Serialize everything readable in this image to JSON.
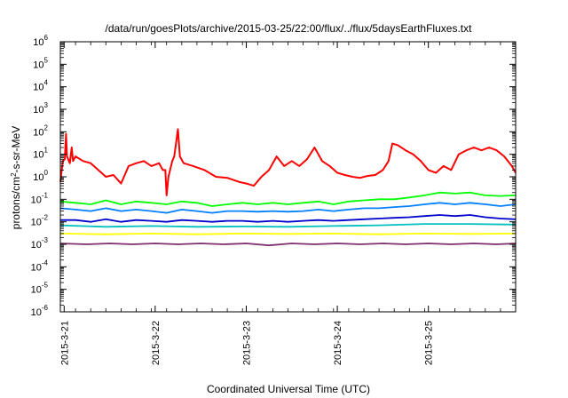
{
  "chart_data": {
    "type": "line",
    "title": "/data/run/goesPlots/archive/2015-03-25/22:00/flux/../flux/5daysEarthFluxes.txt",
    "xlabel": "Coordinated Universal Time (UTC)",
    "ylabel": {
      "base": "protons/cm",
      "sup": "2",
      "rest": "-s-sr-MeV"
    },
    "yscale": "log",
    "ylim": [
      1e-06,
      1000000.0
    ],
    "y_ticks": [
      {
        "value": 1e-06,
        "base": "10",
        "exp": "-6"
      },
      {
        "value": 1e-05,
        "base": "10",
        "exp": "-5"
      },
      {
        "value": 0.0001,
        "base": "10",
        "exp": "-4"
      },
      {
        "value": 0.001,
        "base": "10",
        "exp": "-3"
      },
      {
        "value": 0.01,
        "base": "10",
        "exp": "-2"
      },
      {
        "value": 0.1,
        "base": "10",
        "exp": "-1"
      },
      {
        "value": 1,
        "base": "10",
        "exp": "0"
      },
      {
        "value": 10,
        "base": "10",
        "exp": "1"
      },
      {
        "value": 100,
        "base": "10",
        "exp": "2"
      },
      {
        "value": 1000,
        "base": "10",
        "exp": "3"
      },
      {
        "value": 10000,
        "base": "10",
        "exp": "4"
      },
      {
        "value": 100000,
        "base": "10",
        "exp": "5"
      },
      {
        "value": 1000000,
        "base": "10",
        "exp": "6"
      }
    ],
    "xlim": [
      "2015-03-20T23:00",
      "2015-03-25T23:00"
    ],
    "x_ticks": [
      {
        "value": "2015-03-21T00:00",
        "label": "2015-3-21"
      },
      {
        "value": "2015-03-22T00:00",
        "label": "2015-3-22"
      },
      {
        "value": "2015-03-23T00:00",
        "label": "2015-3-23"
      },
      {
        "value": "2015-03-24T00:00",
        "label": "2015-3-24"
      },
      {
        "value": "2015-03-25T00:00",
        "label": "2015-3-25"
      }
    ],
    "grid": false,
    "legend": "none",
    "series": [
      {
        "color": "#ff0000",
        "points": [
          [
            "2015-03-20T23:00",
            0.6
          ],
          [
            "2015-03-20T23:40",
            5
          ],
          [
            "2015-03-21T00:10",
            6
          ],
          [
            "2015-03-21T00:30",
            80
          ],
          [
            "2015-03-21T00:45",
            8
          ],
          [
            "2015-03-21T01:30",
            4
          ],
          [
            "2015-03-21T02:00",
            20
          ],
          [
            "2015-03-21T02:20",
            5
          ],
          [
            "2015-03-21T03:00",
            8
          ],
          [
            "2015-03-21T05:00",
            5
          ],
          [
            "2015-03-21T07:00",
            4
          ],
          [
            "2015-03-21T09:00",
            2
          ],
          [
            "2015-03-21T11:00",
            1
          ],
          [
            "2015-03-21T13:00",
            1.2
          ],
          [
            "2015-03-21T15:00",
            0.5
          ],
          [
            "2015-03-21T17:00",
            3
          ],
          [
            "2015-03-21T19:00",
            4
          ],
          [
            "2015-03-21T21:00",
            5
          ],
          [
            "2015-03-21T23:00",
            3
          ],
          [
            "2015-03-22T01:00",
            4
          ],
          [
            "2015-03-22T02:00",
            2
          ],
          [
            "2015-03-22T02:40",
            2
          ],
          [
            "2015-03-22T03:00",
            0.15
          ],
          [
            "2015-03-22T03:30",
            1
          ],
          [
            "2015-03-22T04:30",
            5
          ],
          [
            "2015-03-22T05:00",
            8
          ],
          [
            "2015-03-22T06:00",
            130
          ],
          [
            "2015-03-22T06:30",
            8
          ],
          [
            "2015-03-22T07:30",
            4
          ],
          [
            "2015-03-22T10:00",
            3
          ],
          [
            "2015-03-22T13:00",
            2
          ],
          [
            "2015-03-22T16:00",
            1
          ],
          [
            "2015-03-22T19:00",
            0.9
          ],
          [
            "2015-03-22T22:00",
            0.6
          ],
          [
            "2015-03-23T00:00",
            0.5
          ],
          [
            "2015-03-23T02:00",
            0.4
          ],
          [
            "2015-03-23T04:00",
            1
          ],
          [
            "2015-03-23T06:00",
            2
          ],
          [
            "2015-03-23T08:00",
            8
          ],
          [
            "2015-03-23T10:00",
            3
          ],
          [
            "2015-03-23T12:00",
            5
          ],
          [
            "2015-03-23T14:00",
            3
          ],
          [
            "2015-03-23T16:00",
            6
          ],
          [
            "2015-03-23T18:00",
            20
          ],
          [
            "2015-03-23T20:00",
            5
          ],
          [
            "2015-03-23T22:00",
            3
          ],
          [
            "2015-03-24T00:00",
            1.5
          ],
          [
            "2015-03-24T02:00",
            1.2
          ],
          [
            "2015-03-24T04:00",
            1
          ],
          [
            "2015-03-24T06:00",
            0.9
          ],
          [
            "2015-03-24T08:00",
            1.1
          ],
          [
            "2015-03-24T10:00",
            1.2
          ],
          [
            "2015-03-24T12:00",
            2
          ],
          [
            "2015-03-24T13:30",
            5
          ],
          [
            "2015-03-24T14:30",
            30
          ],
          [
            "2015-03-24T16:00",
            25
          ],
          [
            "2015-03-24T18:00",
            15
          ],
          [
            "2015-03-24T20:00",
            10
          ],
          [
            "2015-03-24T22:00",
            5
          ],
          [
            "2015-03-25T00:00",
            2
          ],
          [
            "2015-03-25T02:00",
            1.5
          ],
          [
            "2015-03-25T04:00",
            3
          ],
          [
            "2015-03-25T06:00",
            2
          ],
          [
            "2015-03-25T08:00",
            10
          ],
          [
            "2015-03-25T10:00",
            15
          ],
          [
            "2015-03-25T12:00",
            20
          ],
          [
            "2015-03-25T14:00",
            15
          ],
          [
            "2015-03-25T16:00",
            20
          ],
          [
            "2015-03-25T18:00",
            15
          ],
          [
            "2015-03-25T20:00",
            8
          ],
          [
            "2015-03-25T22:00",
            3
          ],
          [
            "2015-03-25T23:00",
            1.5
          ]
        ]
      },
      {
        "color": "#00ff00",
        "points": [
          [
            "2015-03-20T23:00",
            0.08
          ],
          [
            "2015-03-21T03:00",
            0.07
          ],
          [
            "2015-03-21T07:00",
            0.06
          ],
          [
            "2015-03-21T11:00",
            0.09
          ],
          [
            "2015-03-21T15:00",
            0.06
          ],
          [
            "2015-03-21T19:00",
            0.08
          ],
          [
            "2015-03-21T23:00",
            0.07
          ],
          [
            "2015-03-22T03:00",
            0.06
          ],
          [
            "2015-03-22T07:00",
            0.08
          ],
          [
            "2015-03-22T11:00",
            0.07
          ],
          [
            "2015-03-22T15:00",
            0.05
          ],
          [
            "2015-03-22T19:00",
            0.06
          ],
          [
            "2015-03-22T23:00",
            0.07
          ],
          [
            "2015-03-23T03:00",
            0.06
          ],
          [
            "2015-03-23T07:00",
            0.07
          ],
          [
            "2015-03-23T11:00",
            0.06
          ],
          [
            "2015-03-23T15:00",
            0.07
          ],
          [
            "2015-03-23T19:00",
            0.08
          ],
          [
            "2015-03-23T23:00",
            0.06
          ],
          [
            "2015-03-24T03:00",
            0.08
          ],
          [
            "2015-03-24T07:00",
            0.09
          ],
          [
            "2015-03-24T11:00",
            0.1
          ],
          [
            "2015-03-24T15:00",
            0.1
          ],
          [
            "2015-03-24T19:00",
            0.12
          ],
          [
            "2015-03-24T23:00",
            0.15
          ],
          [
            "2015-03-25T03:00",
            0.2
          ],
          [
            "2015-03-25T07:00",
            0.18
          ],
          [
            "2015-03-25T11:00",
            0.2
          ],
          [
            "2015-03-25T15:00",
            0.15
          ],
          [
            "2015-03-25T19:00",
            0.14
          ],
          [
            "2015-03-25T23:00",
            0.15
          ]
        ]
      },
      {
        "color": "#0080ff",
        "points": [
          [
            "2015-03-20T23:00",
            0.04
          ],
          [
            "2015-03-21T03:00",
            0.035
          ],
          [
            "2015-03-21T07:00",
            0.03
          ],
          [
            "2015-03-21T11:00",
            0.04
          ],
          [
            "2015-03-21T15:00",
            0.03
          ],
          [
            "2015-03-21T19:00",
            0.035
          ],
          [
            "2015-03-21T23:00",
            0.03
          ],
          [
            "2015-03-22T03:00",
            0.025
          ],
          [
            "2015-03-22T07:00",
            0.035
          ],
          [
            "2015-03-22T11:00",
            0.03
          ],
          [
            "2015-03-22T15:00",
            0.025
          ],
          [
            "2015-03-22T19:00",
            0.03
          ],
          [
            "2015-03-22T23:00",
            0.03
          ],
          [
            "2015-03-23T03:00",
            0.028
          ],
          [
            "2015-03-23T07:00",
            0.03
          ],
          [
            "2015-03-23T11:00",
            0.028
          ],
          [
            "2015-03-23T15:00",
            0.03
          ],
          [
            "2015-03-23T19:00",
            0.035
          ],
          [
            "2015-03-23T23:00",
            0.03
          ],
          [
            "2015-03-24T03:00",
            0.035
          ],
          [
            "2015-03-24T07:00",
            0.04
          ],
          [
            "2015-03-24T11:00",
            0.04
          ],
          [
            "2015-03-24T15:00",
            0.045
          ],
          [
            "2015-03-24T19:00",
            0.05
          ],
          [
            "2015-03-24T23:00",
            0.06
          ],
          [
            "2015-03-25T03:00",
            0.07
          ],
          [
            "2015-03-25T07:00",
            0.06
          ],
          [
            "2015-03-25T11:00",
            0.07
          ],
          [
            "2015-03-25T15:00",
            0.06
          ],
          [
            "2015-03-25T19:00",
            0.05
          ],
          [
            "2015-03-25T23:00",
            0.06
          ]
        ]
      },
      {
        "color": "#0000cc",
        "points": [
          [
            "2015-03-20T23:00",
            0.012
          ],
          [
            "2015-03-21T03:00",
            0.012
          ],
          [
            "2015-03-21T07:00",
            0.01
          ],
          [
            "2015-03-21T11:00",
            0.013
          ],
          [
            "2015-03-21T15:00",
            0.01
          ],
          [
            "2015-03-21T19:00",
            0.012
          ],
          [
            "2015-03-21T23:00",
            0.011
          ],
          [
            "2015-03-22T03:00",
            0.01
          ],
          [
            "2015-03-22T07:00",
            0.012
          ],
          [
            "2015-03-22T11:00",
            0.011
          ],
          [
            "2015-03-22T15:00",
            0.01
          ],
          [
            "2015-03-22T19:00",
            0.011
          ],
          [
            "2015-03-22T23:00",
            0.011
          ],
          [
            "2015-03-23T03:00",
            0.01
          ],
          [
            "2015-03-23T07:00",
            0.011
          ],
          [
            "2015-03-23T11:00",
            0.01
          ],
          [
            "2015-03-23T15:00",
            0.011
          ],
          [
            "2015-03-23T19:00",
            0.012
          ],
          [
            "2015-03-23T23:00",
            0.011
          ],
          [
            "2015-03-24T03:00",
            0.012
          ],
          [
            "2015-03-24T07:00",
            0.013
          ],
          [
            "2015-03-24T11:00",
            0.014
          ],
          [
            "2015-03-24T15:00",
            0.015
          ],
          [
            "2015-03-24T19:00",
            0.016
          ],
          [
            "2015-03-24T23:00",
            0.018
          ],
          [
            "2015-03-25T03:00",
            0.02
          ],
          [
            "2015-03-25T07:00",
            0.018
          ],
          [
            "2015-03-25T11:00",
            0.02
          ],
          [
            "2015-03-25T15:00",
            0.016
          ],
          [
            "2015-03-25T19:00",
            0.014
          ],
          [
            "2015-03-25T23:00",
            0.013
          ]
        ]
      },
      {
        "color": "#00c0c0",
        "points": [
          [
            "2015-03-20T23:00",
            0.007
          ],
          [
            "2015-03-21T11:00",
            0.006
          ],
          [
            "2015-03-21T23:00",
            0.0065
          ],
          [
            "2015-03-22T11:00",
            0.006
          ],
          [
            "2015-03-22T23:00",
            0.0062
          ],
          [
            "2015-03-23T11:00",
            0.006
          ],
          [
            "2015-03-23T23:00",
            0.0065
          ],
          [
            "2015-03-24T11:00",
            0.007
          ],
          [
            "2015-03-24T23:00",
            0.008
          ],
          [
            "2015-03-25T11:00",
            0.008
          ],
          [
            "2015-03-25T23:00",
            0.0075
          ]
        ]
      },
      {
        "color": "#ffff00",
        "points": [
          [
            "2015-03-20T23:00",
            0.003
          ],
          [
            "2015-03-21T11:00",
            0.0028
          ],
          [
            "2015-03-21T23:00",
            0.003
          ],
          [
            "2015-03-22T11:00",
            0.0028
          ],
          [
            "2015-03-22T23:00",
            0.003
          ],
          [
            "2015-03-23T11:00",
            0.0029
          ],
          [
            "2015-03-23T23:00",
            0.003
          ],
          [
            "2015-03-24T11:00",
            0.0028
          ],
          [
            "2015-03-24T23:00",
            0.003
          ],
          [
            "2015-03-25T11:00",
            0.0029
          ],
          [
            "2015-03-25T23:00",
            0.003
          ]
        ]
      },
      {
        "color": "#803070",
        "points": [
          [
            "2015-03-20T23:00",
            0.0011
          ],
          [
            "2015-03-21T06:00",
            0.001
          ],
          [
            "2015-03-21T12:00",
            0.0011
          ],
          [
            "2015-03-21T18:00",
            0.001
          ],
          [
            "2015-03-22T00:00",
            0.0011
          ],
          [
            "2015-03-22T06:00",
            0.001
          ],
          [
            "2015-03-22T12:00",
            0.0011
          ],
          [
            "2015-03-22T18:00",
            0.001
          ],
          [
            "2015-03-23T00:00",
            0.0011
          ],
          [
            "2015-03-23T06:00",
            0.0009
          ],
          [
            "2015-03-23T12:00",
            0.0011
          ],
          [
            "2015-03-23T18:00",
            0.001
          ],
          [
            "2015-03-24T00:00",
            0.0011
          ],
          [
            "2015-03-24T06:00",
            0.001
          ],
          [
            "2015-03-24T12:00",
            0.0011
          ],
          [
            "2015-03-24T18:00",
            0.001
          ],
          [
            "2015-03-25T00:00",
            0.0011
          ],
          [
            "2015-03-25T06:00",
            0.001
          ],
          [
            "2015-03-25T12:00",
            0.0011
          ],
          [
            "2015-03-25T18:00",
            0.001
          ],
          [
            "2015-03-25T23:00",
            0.0011
          ]
        ]
      }
    ]
  }
}
